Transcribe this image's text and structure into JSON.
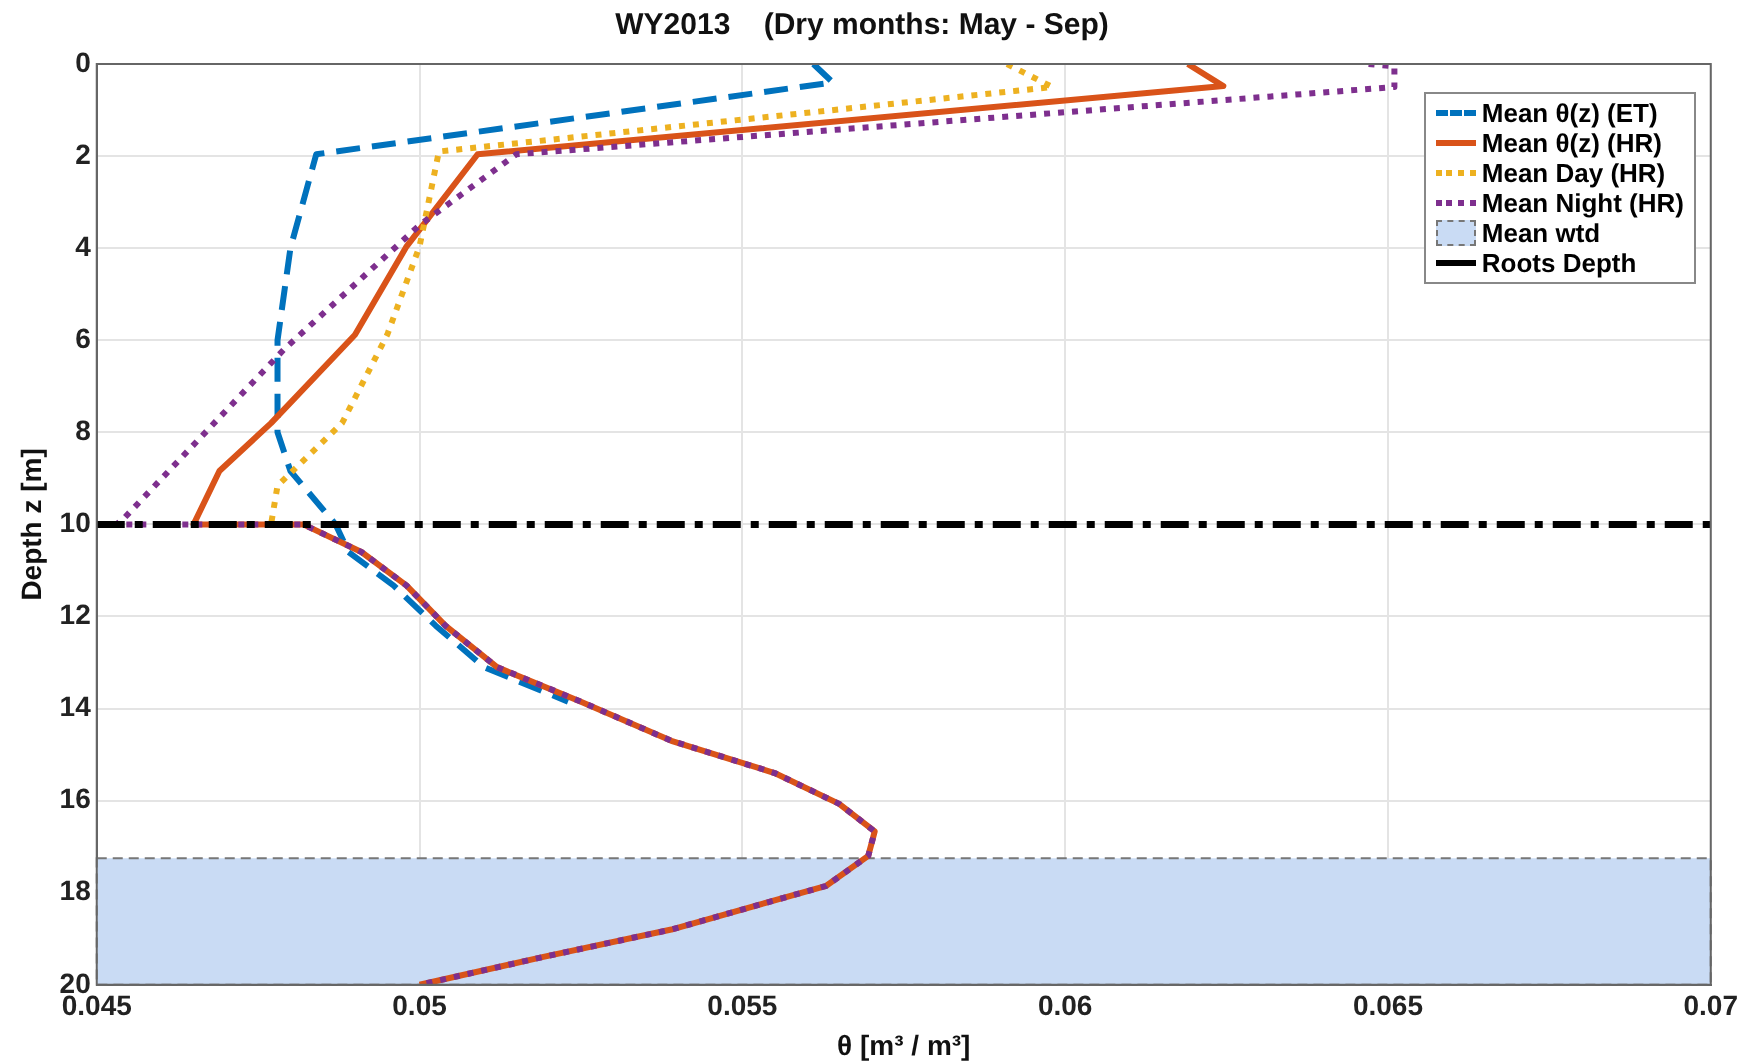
{
  "chart_data": {
    "type": "line",
    "title": "WY2013    (Dry months: May - Sep)",
    "xlabel": "θ [m³ / m³]",
    "ylabel": "Depth z [m]",
    "xlim": [
      0.045,
      0.07
    ],
    "xticks": [
      0.045,
      0.05,
      0.055,
      0.06,
      0.065,
      0.07
    ],
    "ylim": [
      20,
      0
    ],
    "yticks": [
      0,
      2,
      4,
      6,
      8,
      10,
      12,
      14,
      16,
      18,
      20
    ],
    "grid": true,
    "legend": "top right",
    "marker": "none",
    "series": [
      {
        "name": "Mean θ(z) (ET)",
        "color": "#0072bd",
        "line_style": "dashed",
        "x": [
          0.0561,
          0.0564,
          0.0484,
          0.048,
          0.0478,
          0.0478,
          0.048,
          0.0487,
          0.0489,
          0.0496,
          0.05025,
          0.051,
          0.0523
        ],
        "values": [
          0,
          0.4,
          1.96,
          4,
          6,
          8,
          8.84,
          10,
          10.6,
          11.33,
          12.2,
          13.1,
          13.85
        ]
      },
      {
        "name": "Mean θ(z) (HR)",
        "color": "#d95319",
        "line_style": "solid",
        "x": [
          0.0619,
          0.06245,
          0.0509,
          0.0498,
          0.049,
          0.0477,
          0.0469,
          0.0465,
          0.0482,
          0.0491,
          0.0498,
          0.0504,
          0.0512,
          0.0525,
          0.0539,
          0.0555,
          0.0565,
          0.05705,
          0.05695,
          0.0563,
          0.0539,
          0.0519,
          0.05
        ],
        "values": [
          0,
          0.48,
          1.96,
          3.96,
          5.88,
          7.8,
          8.84,
          10,
          10,
          10.6,
          11.33,
          12.2,
          13.1,
          13.85,
          14.7,
          15.4,
          16.07,
          16.67,
          17.2,
          17.85,
          18.8,
          19.4,
          20
        ]
      },
      {
        "name": "Mean Day (HR)",
        "color": "#edb120",
        "line_style": "dotted",
        "x": [
          0.0591,
          0.0598,
          0.0503,
          0.05,
          0.0495,
          0.0488,
          0.0478,
          0.0477
        ],
        "values": [
          0,
          0.5,
          1.9,
          3.96,
          5.88,
          7.8,
          9.16,
          10
        ]
      },
      {
        "name": "Mean Night (HR)",
        "color": "#7e2f8e",
        "line_style": "dotted",
        "x": [
          0.0647,
          0.0651,
          0.0651,
          0.0515,
          0.05,
          0.0479,
          0.0454,
          0.0453,
          0.0482,
          0.0491,
          0.0498,
          0.0504,
          0.0512,
          0.0525,
          0.0539,
          0.0555,
          0.0565,
          0.05705,
          0.05695,
          0.0563,
          0.0539,
          0.0519,
          0.05
        ],
        "values": [
          0,
          0.05,
          0.5,
          1.96,
          3.5,
          6.2,
          9.9,
          10,
          10,
          10.6,
          11.33,
          12.2,
          13.1,
          13.85,
          14.7,
          15.4,
          16.07,
          16.67,
          17.2,
          17.85,
          18.8,
          19.4,
          20
        ]
      }
    ],
    "bands": [
      {
        "axis": "y",
        "from": 17.25,
        "to": 20,
        "label": "Mean wtd",
        "color": "#c9dbf4"
      }
    ],
    "ref_lines": [
      {
        "axis": "y",
        "value": 10,
        "label": "Roots Depth",
        "color": "#000000",
        "line_style": "dashed"
      }
    ]
  }
}
